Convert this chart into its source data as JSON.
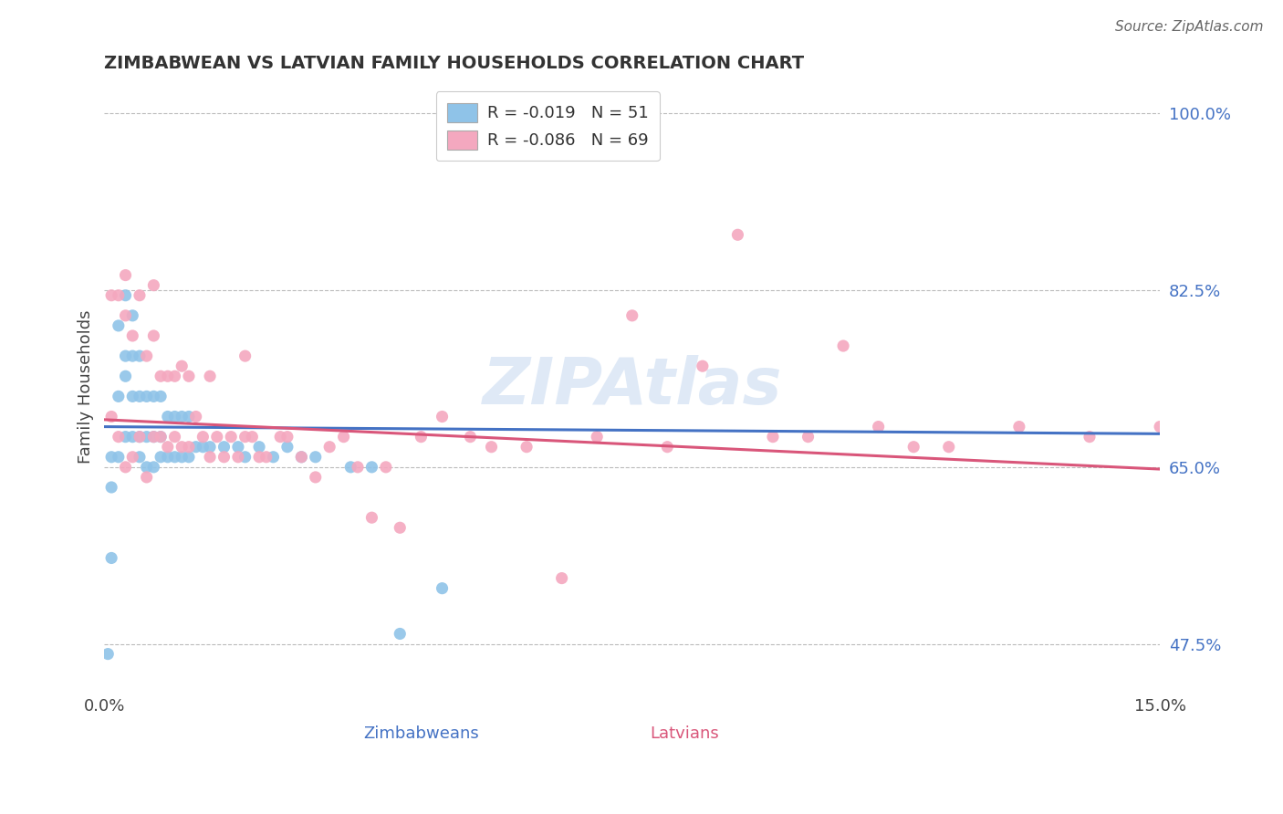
{
  "title": "ZIMBABWEAN VS LATVIAN FAMILY HOUSEHOLDS CORRELATION CHART",
  "source_text": "Source: ZipAtlas.com",
  "ylabel": "Family Households",
  "xlabel_zimbabweans": "Zimbabweans",
  "xlabel_latvians": "Latvians",
  "xmin": 0.0,
  "xmax": 0.15,
  "ymin": 0.43,
  "ymax": 1.03,
  "blue_color": "#8FC3E8",
  "pink_color": "#F4A8BF",
  "line_blue": "#4472C4",
  "line_pink": "#D9567A",
  "legend_r_blue": "R = -0.019",
  "legend_n_blue": "N = 51",
  "legend_r_pink": "R = -0.086",
  "legend_n_pink": "N = 69",
  "ytick_vals": [
    0.475,
    0.65,
    0.825,
    1.0
  ],
  "ytick_labels": [
    "47.5%",
    "65.0%",
    "82.5%",
    "100.0%"
  ],
  "xtick_vals": [
    0.0,
    0.15
  ],
  "xtick_labels": [
    "0.0%",
    "15.0%"
  ],
  "grid_lines": [
    1.0,
    0.825,
    0.65,
    0.475
  ],
  "zim_x": [
    0.0005,
    0.001,
    0.001,
    0.002,
    0.002,
    0.002,
    0.003,
    0.003,
    0.003,
    0.003,
    0.004,
    0.004,
    0.004,
    0.004,
    0.005,
    0.005,
    0.005,
    0.005,
    0.006,
    0.006,
    0.006,
    0.007,
    0.007,
    0.007,
    0.008,
    0.008,
    0.008,
    0.009,
    0.009,
    0.01,
    0.01,
    0.011,
    0.011,
    0.012,
    0.012,
    0.013,
    0.014,
    0.015,
    0.017,
    0.019,
    0.02,
    0.022,
    0.024,
    0.026,
    0.028,
    0.03,
    0.035,
    0.038,
    0.042,
    0.048,
    0.001
  ],
  "zim_y": [
    0.465,
    0.56,
    0.66,
    0.66,
    0.72,
    0.79,
    0.68,
    0.74,
    0.76,
    0.82,
    0.68,
    0.72,
    0.76,
    0.8,
    0.66,
    0.68,
    0.72,
    0.76,
    0.65,
    0.68,
    0.72,
    0.65,
    0.68,
    0.72,
    0.66,
    0.68,
    0.72,
    0.66,
    0.7,
    0.66,
    0.7,
    0.66,
    0.7,
    0.66,
    0.7,
    0.67,
    0.67,
    0.67,
    0.67,
    0.67,
    0.66,
    0.67,
    0.66,
    0.67,
    0.66,
    0.66,
    0.65,
    0.65,
    0.485,
    0.53,
    0.63
  ],
  "lat_x": [
    0.001,
    0.001,
    0.002,
    0.002,
    0.003,
    0.003,
    0.003,
    0.004,
    0.004,
    0.005,
    0.005,
    0.006,
    0.006,
    0.007,
    0.007,
    0.007,
    0.008,
    0.008,
    0.009,
    0.009,
    0.01,
    0.01,
    0.011,
    0.011,
    0.012,
    0.012,
    0.013,
    0.014,
    0.015,
    0.015,
    0.016,
    0.017,
    0.018,
    0.019,
    0.02,
    0.02,
    0.021,
    0.022,
    0.023,
    0.025,
    0.026,
    0.028,
    0.03,
    0.032,
    0.034,
    0.036,
    0.038,
    0.04,
    0.042,
    0.045,
    0.048,
    0.052,
    0.055,
    0.06,
    0.065,
    0.07,
    0.075,
    0.08,
    0.085,
    0.09,
    0.095,
    0.1,
    0.105,
    0.11,
    0.115,
    0.12,
    0.13,
    0.14,
    0.15
  ],
  "lat_y": [
    0.7,
    0.82,
    0.68,
    0.82,
    0.65,
    0.8,
    0.84,
    0.66,
    0.78,
    0.68,
    0.82,
    0.64,
    0.76,
    0.68,
    0.78,
    0.83,
    0.68,
    0.74,
    0.67,
    0.74,
    0.68,
    0.74,
    0.67,
    0.75,
    0.67,
    0.74,
    0.7,
    0.68,
    0.66,
    0.74,
    0.68,
    0.66,
    0.68,
    0.66,
    0.68,
    0.76,
    0.68,
    0.66,
    0.66,
    0.68,
    0.68,
    0.66,
    0.64,
    0.67,
    0.68,
    0.65,
    0.6,
    0.65,
    0.59,
    0.68,
    0.7,
    0.68,
    0.67,
    0.67,
    0.54,
    0.68,
    0.8,
    0.67,
    0.75,
    0.88,
    0.68,
    0.68,
    0.77,
    0.69,
    0.67,
    0.67,
    0.69,
    0.68,
    0.69
  ]
}
